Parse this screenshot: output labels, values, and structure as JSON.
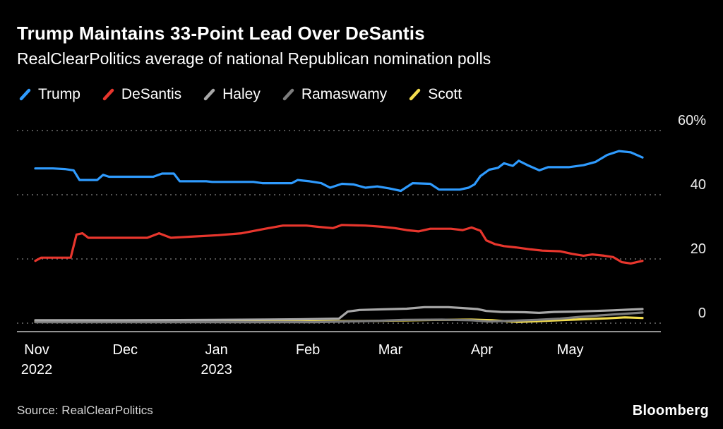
{
  "header": {
    "title": "Trump Maintains 33-Point Lead Over DeSantis",
    "subtitle": "RealClearPolitics average of national Republican nomination polls"
  },
  "footer": {
    "source": "Source: RealClearPolitics",
    "brand": "Bloomberg"
  },
  "chart_data": {
    "type": "line",
    "title": "Trump Maintains 33-Point Lead Over DeSantis",
    "subtitle": "RealClearPolitics average of national Republican nomination polls",
    "x_unit": "days since Nov 1 2022",
    "x_domain": [
      0,
      206
    ],
    "ylim": [
      0,
      60
    ],
    "grid": "dotted-horizontal",
    "legend_position": "top-left",
    "yticks": [
      {
        "value": 60,
        "label": "60%"
      },
      {
        "value": 40,
        "label": "40"
      },
      {
        "value": 20,
        "label": "20"
      },
      {
        "value": 0,
        "label": "0"
      }
    ],
    "xticks": [
      {
        "day": 0,
        "label": "Nov",
        "sublabel": "2022"
      },
      {
        "day": 30,
        "label": "Dec",
        "sublabel": ""
      },
      {
        "day": 61,
        "label": "Jan",
        "sublabel": "2023"
      },
      {
        "day": 92,
        "label": "Feb",
        "sublabel": ""
      },
      {
        "day": 120,
        "label": "Mar",
        "sublabel": ""
      },
      {
        "day": 151,
        "label": "Apr",
        "sublabel": ""
      },
      {
        "day": 181,
        "label": "May",
        "sublabel": ""
      }
    ],
    "series": [
      {
        "name": "Scott",
        "color": "#f3dd4e",
        "points": [
          [
            0,
            0.4
          ],
          [
            60,
            0.4
          ],
          [
            90,
            0.5
          ],
          [
            115,
            0.7
          ],
          [
            135,
            1.0
          ],
          [
            148,
            1.1
          ],
          [
            155,
            0.9
          ],
          [
            160,
            0.6
          ],
          [
            164,
            0.4
          ],
          [
            170,
            0.6
          ],
          [
            180,
            1.0
          ],
          [
            188,
            1.3
          ],
          [
            194,
            1.5
          ],
          [
            200,
            1.8
          ],
          [
            206,
            1.6
          ]
        ]
      },
      {
        "name": "Ramaswamy",
        "color": "#7d7d7d",
        "points": [
          [
            0,
            0.3
          ],
          [
            95,
            0.3
          ],
          [
            105,
            0.5
          ],
          [
            115,
            0.7
          ],
          [
            125,
            1.0
          ],
          [
            138,
            1.1
          ],
          [
            148,
            0.9
          ],
          [
            154,
            0.5
          ],
          [
            160,
            0.7
          ],
          [
            170,
            1.0
          ],
          [
            178,
            1.4
          ],
          [
            184,
            1.9
          ],
          [
            190,
            2.3
          ],
          [
            196,
            2.7
          ],
          [
            201,
            3.0
          ],
          [
            206,
            3.3
          ]
        ]
      },
      {
        "name": "Haley",
        "color": "#a8a8a8",
        "points": [
          [
            0,
            0.9
          ],
          [
            30,
            0.9
          ],
          [
            60,
            1.0
          ],
          [
            90,
            1.2
          ],
          [
            103,
            1.4
          ],
          [
            106,
            3.6
          ],
          [
            110,
            4.1
          ],
          [
            118,
            4.3
          ],
          [
            126,
            4.5
          ],
          [
            132,
            5.0
          ],
          [
            140,
            5.0
          ],
          [
            145,
            4.7
          ],
          [
            150,
            4.4
          ],
          [
            153,
            3.8
          ],
          [
            158,
            3.5
          ],
          [
            166,
            3.4
          ],
          [
            171,
            3.2
          ],
          [
            176,
            3.5
          ],
          [
            183,
            3.6
          ],
          [
            190,
            3.8
          ],
          [
            196,
            4.0
          ],
          [
            201,
            4.2
          ],
          [
            206,
            4.4
          ]
        ]
      },
      {
        "name": "DeSantis",
        "color": "#e8362d",
        "points": [
          [
            0,
            19.4
          ],
          [
            2,
            20.4
          ],
          [
            12,
            20.4
          ],
          [
            14,
            27.6
          ],
          [
            16,
            28.0
          ],
          [
            18,
            26.6
          ],
          [
            38,
            26.6
          ],
          [
            42,
            28.0
          ],
          [
            46,
            26.6
          ],
          [
            54,
            27.0
          ],
          [
            62,
            27.4
          ],
          [
            70,
            28.0
          ],
          [
            78,
            29.4
          ],
          [
            84,
            30.4
          ],
          [
            92,
            30.4
          ],
          [
            96,
            30.0
          ],
          [
            101,
            29.6
          ],
          [
            104,
            30.6
          ],
          [
            112,
            30.4
          ],
          [
            118,
            30.0
          ],
          [
            122,
            29.6
          ],
          [
            126,
            29.0
          ],
          [
            130,
            28.6
          ],
          [
            134,
            29.4
          ],
          [
            141,
            29.4
          ],
          [
            145,
            29.0
          ],
          [
            148,
            29.8
          ],
          [
            151,
            28.8
          ],
          [
            153,
            25.8
          ],
          [
            156,
            24.6
          ],
          [
            159,
            24.0
          ],
          [
            163,
            23.6
          ],
          [
            168,
            23.0
          ],
          [
            172,
            22.6
          ],
          [
            178,
            22.4
          ],
          [
            182,
            21.6
          ],
          [
            186,
            21.0
          ],
          [
            189,
            21.4
          ],
          [
            193,
            21.0
          ],
          [
            196,
            20.6
          ],
          [
            199,
            19.0
          ],
          [
            202,
            18.6
          ],
          [
            206,
            19.4
          ]
        ]
      },
      {
        "name": "Trump",
        "color": "#2f9bfe",
        "points": [
          [
            0,
            48.2
          ],
          [
            6,
            48.2
          ],
          [
            10,
            48.0
          ],
          [
            13,
            47.6
          ],
          [
            15,
            44.6
          ],
          [
            21,
            44.6
          ],
          [
            23,
            46.2
          ],
          [
            25,
            45.6
          ],
          [
            40,
            45.6
          ],
          [
            43,
            46.6
          ],
          [
            47,
            46.6
          ],
          [
            49,
            44.2
          ],
          [
            58,
            44.2
          ],
          [
            60,
            44.0
          ],
          [
            74,
            44.0
          ],
          [
            77,
            43.6
          ],
          [
            87,
            43.6
          ],
          [
            89,
            44.6
          ],
          [
            93,
            44.2
          ],
          [
            97,
            43.6
          ],
          [
            100,
            42.2
          ],
          [
            104,
            43.4
          ],
          [
            108,
            43.2
          ],
          [
            112,
            42.2
          ],
          [
            116,
            42.6
          ],
          [
            120,
            42.0
          ],
          [
            124,
            41.2
          ],
          [
            128,
            43.6
          ],
          [
            134,
            43.4
          ],
          [
            137,
            41.6
          ],
          [
            144,
            41.6
          ],
          [
            147,
            42.2
          ],
          [
            149,
            43.2
          ],
          [
            151,
            45.8
          ],
          [
            154,
            47.8
          ],
          [
            157,
            48.4
          ],
          [
            159,
            49.8
          ],
          [
            162,
            49.0
          ],
          [
            164,
            50.6
          ],
          [
            167,
            49.2
          ],
          [
            171,
            47.6
          ],
          [
            174,
            48.6
          ],
          [
            181,
            48.6
          ],
          [
            186,
            49.2
          ],
          [
            190,
            50.2
          ],
          [
            194,
            52.4
          ],
          [
            198,
            53.6
          ],
          [
            202,
            53.2
          ],
          [
            206,
            51.6
          ]
        ]
      }
    ],
    "legend_order": [
      "Trump",
      "DeSantis",
      "Haley",
      "Ramaswamy",
      "Scott"
    ],
    "colors": {
      "Trump": "#2f9bfe",
      "DeSantis": "#e8362d",
      "Haley": "#a8a8a8",
      "Ramaswamy": "#7d7d7d",
      "Scott": "#f3dd4e",
      "gridline": "#6f6f6f",
      "axis_line": "#c2c2c2",
      "background": "#000000"
    }
  }
}
